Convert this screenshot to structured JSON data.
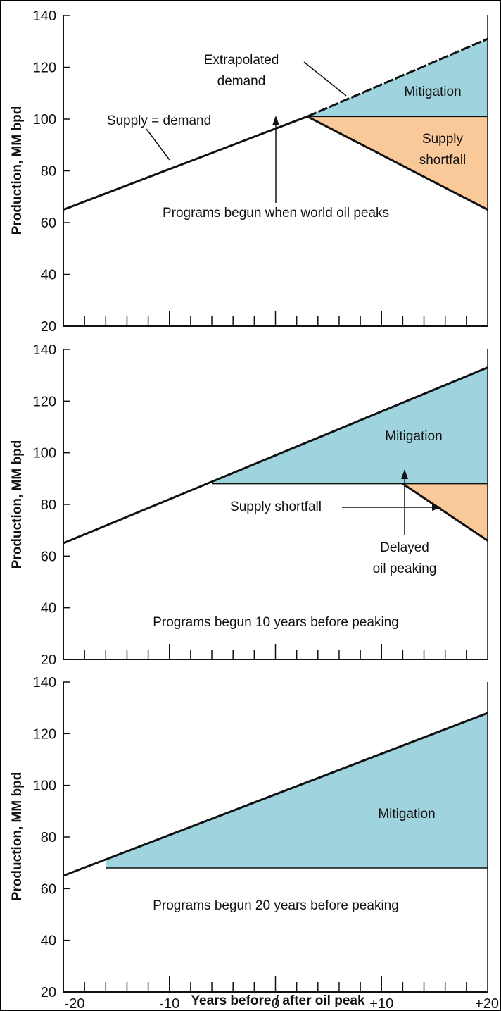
{
  "colors": {
    "mitigation": "#9fd3dd",
    "shortfall": "#f9c99a",
    "line": "#111111"
  },
  "chart_data": [
    {
      "type": "area",
      "name": "panel-1",
      "ylabel": "Production, MM bpd",
      "xlim": [
        -20,
        20
      ],
      "ylim": [
        20,
        140
      ],
      "yticks": [
        "140",
        "120",
        "100",
        "80",
        "60",
        "40",
        "20"
      ],
      "supply_demand": {
        "x": [
          -20,
          3
        ],
        "y": [
          65,
          101
        ]
      },
      "extrapolated_demand": {
        "x": [
          3,
          20
        ],
        "y": [
          101,
          131
        ]
      },
      "supply_after_peak": {
        "x": [
          3,
          20
        ],
        "y": [
          101,
          65
        ]
      },
      "mitigation_level": 101,
      "annotations": {
        "extrapolated": [
          "Extrapolated",
          "demand"
        ],
        "supply_eq": "Supply = demand",
        "programs": "Programs begun when world oil peaks",
        "mitigation": "Mitigation",
        "shortfall": [
          "Supply",
          "shortfall"
        ]
      }
    },
    {
      "type": "area",
      "name": "panel-2",
      "ylabel": "Production, MM bpd",
      "xlim": [
        -20,
        20
      ],
      "ylim": [
        20,
        140
      ],
      "yticks": [
        "140",
        "120",
        "100",
        "80",
        "60",
        "40",
        "20"
      ],
      "demand": {
        "x": [
          -20,
          20
        ],
        "y": [
          65,
          133
        ]
      },
      "supply_plateau": {
        "x": [
          -6,
          12
        ],
        "y": [
          88,
          88
        ]
      },
      "supply_after_peak": {
        "x": [
          12,
          20
        ],
        "y": [
          88,
          66
        ]
      },
      "annotations": {
        "mitigation": "Mitigation",
        "shortfall": "Supply shortfall",
        "delayed": [
          "Delayed",
          "oil peaking"
        ],
        "programs": "Programs begun 10 years before peaking"
      }
    },
    {
      "type": "area",
      "name": "panel-3",
      "ylabel": "Production, MM bpd",
      "xlim": [
        -20,
        20
      ],
      "ylim": [
        20,
        140
      ],
      "yticks": [
        "140",
        "120",
        "100",
        "80",
        "60",
        "40",
        "20"
      ],
      "demand": {
        "x": [
          -20,
          20
        ],
        "y": [
          65,
          128
        ]
      },
      "supply_plateau": {
        "x": [
          -16,
          20
        ],
        "y": [
          68,
          68
        ]
      },
      "annotations": {
        "mitigation": "Mitigation",
        "programs": "Programs begun 20 years before peaking"
      }
    }
  ],
  "x_axis": {
    "tick_labels": [
      "-20",
      "-10",
      "0",
      "+10",
      "+20"
    ],
    "title": "Years before / after oil peak"
  }
}
